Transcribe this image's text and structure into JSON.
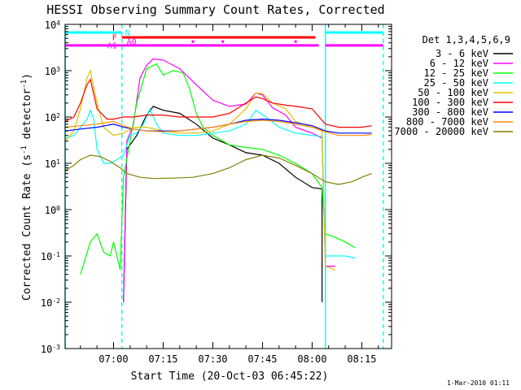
{
  "chart_data": {
    "type": "line",
    "title": "HESSI Observing Summary Count Rates, Corrected",
    "xlabel": "Start Time (20-Oct-03 06:45:22)",
    "ylabel_pre": "Corrected Count Rate (s",
    "ylabel_sup": "-1",
    "ylabel_post": " detector",
    "ylabel_close": ")",
    "y_scale": "log",
    "ylim": [
      0.001,
      10000
    ],
    "xlim": [
      "06:45:22",
      "08:24:00"
    ],
    "x_ticks": [
      "07:00",
      "07:15",
      "07:30",
      "07:45",
      "08:00",
      "08:15"
    ],
    "y_ticks": [
      {
        "v": 10000,
        "b": "10",
        "e": "4"
      },
      {
        "v": 1000,
        "b": "10",
        "e": "3"
      },
      {
        "v": 100,
        "b": "10",
        "e": "2"
      },
      {
        "v": 10,
        "b": "10",
        "e": "1"
      },
      {
        "v": 1,
        "b": "10",
        "e": "0"
      },
      {
        "v": 0.1,
        "b": "10",
        "e": "-1"
      },
      {
        "v": 0.01,
        "b": "10",
        "e": "-2"
      },
      {
        "v": 0.001,
        "b": "10",
        "e": "-3"
      }
    ],
    "legend_title": "Det 1,3,4,5,6,9",
    "legend_placement": "right",
    "series": [
      {
        "name": "3 - 6 keV",
        "color": "#000000",
        "points": [
          [
            "07:03",
            0.01
          ],
          [
            "07:04",
            20
          ],
          [
            "07:07",
            40
          ],
          [
            "07:10",
            110
          ],
          [
            "07:12",
            170
          ],
          [
            "07:15",
            140
          ],
          [
            "07:20",
            120
          ],
          [
            "07:25",
            70
          ],
          [
            "07:30",
            35
          ],
          [
            "07:35",
            25
          ],
          [
            "07:40",
            17
          ],
          [
            "07:45",
            15
          ],
          [
            "07:50",
            10
          ],
          [
            "07:55",
            5
          ],
          [
            "08:00",
            3
          ],
          [
            "08:03",
            2.8
          ],
          [
            "08:03",
            0.01
          ]
        ]
      },
      {
        "name": "6 - 12 keV",
        "color": "#ff00ff",
        "points": [
          [
            "07:03",
            0.01
          ],
          [
            "07:04",
            30
          ],
          [
            "07:06",
            70
          ],
          [
            "07:08",
            700
          ],
          [
            "07:10",
            1300
          ],
          [
            "07:12",
            1800
          ],
          [
            "07:15",
            1700
          ],
          [
            "07:20",
            1100
          ],
          [
            "07:25",
            500
          ],
          [
            "07:30",
            230
          ],
          [
            "07:35",
            170
          ],
          [
            "07:40",
            190
          ],
          [
            "07:43",
            330
          ],
          [
            "07:45",
            300
          ],
          [
            "07:48",
            160
          ],
          [
            "07:52",
            110
          ],
          [
            "07:55",
            60
          ],
          [
            "08:00",
            45
          ],
          [
            "08:03",
            35
          ],
          [
            "08:04",
            0.06
          ],
          [
            "08:07",
            0.06
          ]
        ]
      },
      {
        "name": "12 - 25 keV",
        "color": "#00ff00",
        "points": [
          [
            "06:50",
            0.04
          ],
          [
            "06:53",
            0.2
          ],
          [
            "06:55",
            0.3
          ],
          [
            "06:57",
            0.12
          ],
          [
            "06:59",
            0.1
          ],
          [
            "07:00",
            0.2
          ],
          [
            "07:02",
            0.05
          ],
          [
            "07:03",
            5
          ],
          [
            "07:05",
            30
          ],
          [
            "07:07",
            200
          ],
          [
            "07:10",
            1100
          ],
          [
            "07:13",
            1400
          ],
          [
            "07:15",
            800
          ],
          [
            "07:18",
            1000
          ],
          [
            "07:21",
            900
          ],
          [
            "07:23",
            400
          ],
          [
            "07:25",
            120
          ],
          [
            "07:27",
            60
          ],
          [
            "07:30",
            40
          ],
          [
            "07:35",
            25
          ],
          [
            "07:40",
            22
          ],
          [
            "07:45",
            20
          ],
          [
            "07:50",
            15
          ],
          [
            "07:55",
            10
          ],
          [
            "08:00",
            6
          ],
          [
            "08:03",
            3
          ],
          [
            "08:04",
            0.3
          ],
          [
            "08:07",
            0.25
          ],
          [
            "08:10",
            0.2
          ],
          [
            "08:13",
            0.15
          ]
        ]
      },
      {
        "name": "25 - 50 keV",
        "color": "#00ffff",
        "points": [
          [
            "06:45:22",
            35
          ],
          [
            "06:48",
            40
          ],
          [
            "06:50",
            60
          ],
          [
            "06:52",
            90
          ],
          [
            "06:53",
            140
          ],
          [
            "06:54",
            90
          ],
          [
            "06:55",
            20
          ],
          [
            "06:57",
            10
          ],
          [
            "06:59",
            10
          ],
          [
            "07:01",
            12
          ],
          [
            "07:03",
            15
          ],
          [
            "07:05",
            40
          ],
          [
            "07:07",
            45
          ],
          [
            "07:09",
            70
          ],
          [
            "07:11",
            150
          ],
          [
            "07:13",
            70
          ],
          [
            "07:15",
            45
          ],
          [
            "07:20",
            40
          ],
          [
            "07:25",
            40
          ],
          [
            "07:30",
            45
          ],
          [
            "07:35",
            50
          ],
          [
            "07:40",
            70
          ],
          [
            "07:43",
            140
          ],
          [
            "07:46",
            100
          ],
          [
            "07:50",
            60
          ],
          [
            "07:55",
            45
          ],
          [
            "08:00",
            40
          ],
          [
            "08:03",
            38
          ],
          [
            "08:04",
            0.1
          ],
          [
            "08:07",
            0.1
          ],
          [
            "08:10",
            0.1
          ],
          [
            "08:13",
            0.09
          ]
        ]
      },
      {
        "name": "50 - 100 keV",
        "color": "#e0c000",
        "points": [
          [
            "06:45:22",
            30
          ],
          [
            "06:48",
            50
          ],
          [
            "06:50",
            150
          ],
          [
            "06:52",
            700
          ],
          [
            "06:53",
            1000
          ],
          [
            "06:55",
            200
          ],
          [
            "06:57",
            60
          ],
          [
            "07:00",
            40
          ],
          [
            "07:03",
            45
          ],
          [
            "07:06",
            60
          ],
          [
            "07:10",
            60
          ],
          [
            "07:15",
            50
          ],
          [
            "07:20",
            45
          ],
          [
            "07:25",
            45
          ],
          [
            "07:30",
            50
          ],
          [
            "07:35",
            70
          ],
          [
            "07:40",
            150
          ],
          [
            "07:43",
            330
          ],
          [
            "07:45",
            320
          ],
          [
            "07:48",
            200
          ],
          [
            "07:52",
            150
          ],
          [
            "07:55",
            80
          ],
          [
            "08:00",
            60
          ],
          [
            "08:03",
            50
          ],
          [
            "08:04",
            0.06
          ],
          [
            "08:07",
            0.05
          ]
        ]
      },
      {
        "name": "100 - 300 keV",
        "color": "#ff0000",
        "points": [
          [
            "06:45:22",
            80
          ],
          [
            "06:48",
            100
          ],
          [
            "06:50",
            200
          ],
          [
            "06:52",
            500
          ],
          [
            "06:53",
            650
          ],
          [
            "06:55",
            150
          ],
          [
            "06:58",
            90
          ],
          [
            "07:00",
            90
          ],
          [
            "07:03",
            100
          ],
          [
            "07:06",
            100
          ],
          [
            "07:10",
            110
          ],
          [
            "07:15",
            110
          ],
          [
            "07:20",
            100
          ],
          [
            "07:25",
            100
          ],
          [
            "07:30",
            100
          ],
          [
            "07:35",
            120
          ],
          [
            "07:40",
            200
          ],
          [
            "07:43",
            270
          ],
          [
            "07:45",
            250
          ],
          [
            "07:48",
            200
          ],
          [
            "07:52",
            180
          ],
          [
            "07:55",
            170
          ],
          [
            "08:00",
            150
          ],
          [
            "08:04",
            70
          ],
          [
            "08:08",
            60
          ],
          [
            "08:12",
            60
          ],
          [
            "08:15",
            60
          ],
          [
            "08:18",
            65
          ]
        ]
      },
      {
        "name": "300 - 800 keV",
        "color": "#0000ff",
        "points": [
          [
            "06:45:22",
            50
          ],
          [
            "06:50",
            55
          ],
          [
            "06:55",
            60
          ],
          [
            "07:00",
            70
          ],
          [
            "07:03",
            60
          ],
          [
            "07:06",
            55
          ],
          [
            "07:10",
            50
          ],
          [
            "07:15",
            50
          ],
          [
            "07:20",
            50
          ],
          [
            "07:25",
            55
          ],
          [
            "07:30",
            60
          ],
          [
            "07:35",
            70
          ],
          [
            "07:40",
            85
          ],
          [
            "07:45",
            90
          ],
          [
            "07:50",
            85
          ],
          [
            "07:55",
            75
          ],
          [
            "08:00",
            65
          ],
          [
            "08:04",
            50
          ],
          [
            "08:08",
            45
          ],
          [
            "08:12",
            45
          ],
          [
            "08:15",
            45
          ],
          [
            "08:18",
            45
          ]
        ]
      },
      {
        "name": "800 - 7000 keV",
        "color": "#ff8c00",
        "points": [
          [
            "06:45:22",
            60
          ],
          [
            "06:50",
            65
          ],
          [
            "06:55",
            70
          ],
          [
            "07:00",
            80
          ],
          [
            "07:03",
            65
          ],
          [
            "07:06",
            55
          ],
          [
            "07:10",
            50
          ],
          [
            "07:15",
            48
          ],
          [
            "07:20",
            50
          ],
          [
            "07:25",
            55
          ],
          [
            "07:30",
            60
          ],
          [
            "07:35",
            70
          ],
          [
            "07:40",
            80
          ],
          [
            "07:45",
            85
          ],
          [
            "07:50",
            80
          ],
          [
            "07:55",
            70
          ],
          [
            "08:00",
            60
          ],
          [
            "08:04",
            48
          ],
          [
            "08:08",
            40
          ],
          [
            "08:12",
            40
          ],
          [
            "08:15",
            40
          ],
          [
            "08:18",
            42
          ]
        ]
      },
      {
        "name": "7000 - 20000 keV",
        "color": "#808000",
        "points": [
          [
            "06:45:22",
            7
          ],
          [
            "06:48",
            9
          ],
          [
            "06:50",
            12
          ],
          [
            "06:53",
            15
          ],
          [
            "06:56",
            14
          ],
          [
            "06:59",
            11
          ],
          [
            "07:02",
            8
          ],
          [
            "07:04",
            6
          ],
          [
            "07:08",
            5
          ],
          [
            "07:12",
            4.7
          ],
          [
            "07:18",
            4.8
          ],
          [
            "07:24",
            5
          ],
          [
            "07:30",
            6
          ],
          [
            "07:35",
            8
          ],
          [
            "07:40",
            12
          ],
          [
            "07:45",
            15
          ],
          [
            "07:50",
            13
          ],
          [
            "07:55",
            9
          ],
          [
            "08:00",
            6
          ],
          [
            "08:04",
            4
          ],
          [
            "08:08",
            3.5
          ],
          [
            "08:12",
            4
          ],
          [
            "08:15",
            5
          ],
          [
            "08:18",
            6
          ]
        ]
      }
    ],
    "vlines": [
      {
        "t": "06:45:22",
        "color": "#00ffff",
        "dash": false
      },
      {
        "t": "07:02:30",
        "color": "#00ffff",
        "dash": true
      },
      {
        "t": "08:04:00",
        "color": "#00ffff",
        "dash": false
      },
      {
        "t": "08:21:30",
        "color": "#00ffff",
        "dash": true
      }
    ],
    "flag_bars": [
      {
        "label": "N",
        "color": "#00ffff",
        "y": 0.975,
        "segments": [
          [
            "06:45:22",
            "07:02:30"
          ],
          [
            "08:04:00",
            "08:21:30"
          ]
        ],
        "dots": []
      },
      {
        "label": "F",
        "color": "#ff0000",
        "y": 0.96,
        "segments": [
          [
            "07:02:30",
            "08:01:00"
          ]
        ],
        "dots": []
      },
      {
        "label": "A0",
        "color": "#ff00ff",
        "y": 0.947,
        "segments": [],
        "dots": [
          "07:24",
          "07:33",
          "07:55"
        ]
      },
      {
        "label": "A1",
        "color": "#ff00ff",
        "y": 0.935,
        "segments": [
          [
            "06:45:22",
            "08:02:00"
          ],
          [
            "08:04:00",
            "08:21:30"
          ]
        ],
        "dots": []
      }
    ],
    "footer_date": "1-Mar-2010 01:11"
  }
}
